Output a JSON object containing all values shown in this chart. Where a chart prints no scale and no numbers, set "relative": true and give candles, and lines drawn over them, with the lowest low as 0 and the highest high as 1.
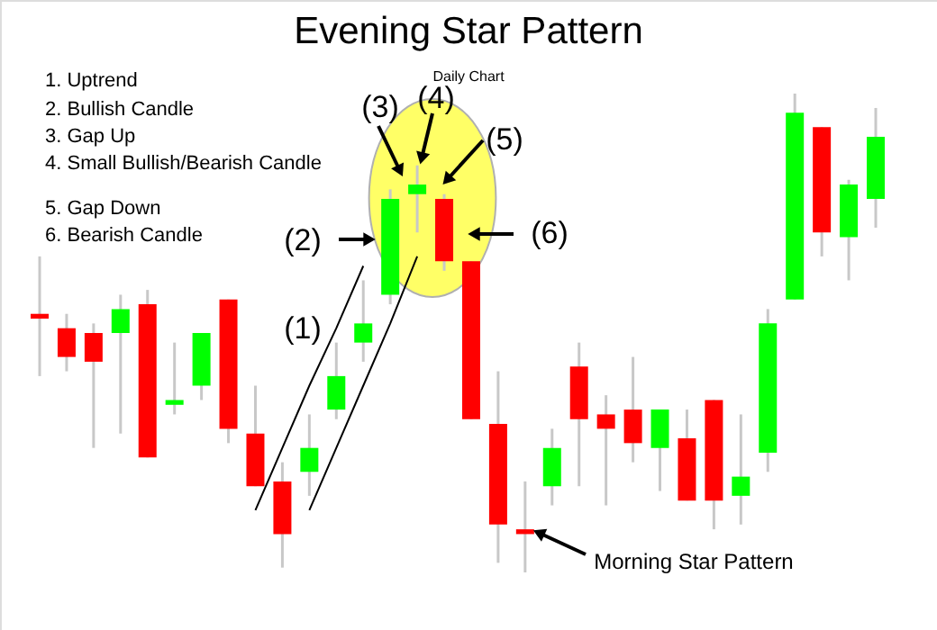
{
  "chart_data": {
    "type": "candlestick",
    "title": "Evening Star Pattern",
    "subtitle": "Daily Chart",
    "relative": true,
    "categories": [
      null,
      null,
      null,
      null,
      null,
      null,
      null,
      null,
      null,
      null,
      null,
      null,
      null,
      null,
      null,
      null,
      null,
      null,
      null,
      null,
      null,
      null,
      null,
      null,
      null,
      null,
      null,
      null,
      null,
      null,
      null,
      null
    ],
    "ohlc": [
      [
        0.54,
        0.66,
        0.41,
        0.53
      ],
      [
        0.51,
        0.54,
        0.42,
        0.45
      ],
      [
        0.5,
        0.52,
        0.26,
        0.44
      ],
      [
        0.5,
        0.58,
        0.29,
        0.55
      ],
      [
        0.56,
        0.59,
        0.24,
        0.24
      ],
      [
        0.35,
        0.48,
        0.33,
        0.36
      ],
      [
        0.39,
        0.5,
        0.36,
        0.5
      ],
      [
        0.57,
        0.57,
        0.27,
        0.3
      ],
      [
        0.29,
        0.39,
        0.18,
        0.18
      ],
      [
        0.19,
        0.23,
        0.01,
        0.08
      ],
      [
        0.21,
        0.33,
        0.16,
        0.26
      ],
      [
        0.34,
        0.48,
        0.32,
        0.41
      ],
      [
        0.48,
        0.61,
        0.44,
        0.52
      ],
      [
        0.58,
        0.8,
        0.56,
        0.78
      ],
      [
        0.79,
        0.85,
        0.71,
        0.81
      ],
      [
        0.78,
        0.79,
        0.63,
        0.65
      ],
      [
        0.65,
        0.65,
        0.32,
        0.32
      ],
      [
        0.31,
        0.42,
        0.02,
        0.1
      ],
      [
        0.09,
        0.19,
        0.0,
        0.08
      ],
      [
        0.18,
        0.3,
        0.14,
        0.26
      ],
      [
        0.43,
        0.48,
        0.18,
        0.32
      ],
      [
        0.33,
        0.37,
        0.14,
        0.3
      ],
      [
        0.34,
        0.45,
        0.23,
        0.27
      ],
      [
        0.26,
        0.34,
        0.17,
        0.34
      ],
      [
        0.28,
        0.34,
        0.15,
        0.15
      ],
      [
        0.36,
        0.36,
        0.09,
        0.15
      ],
      [
        0.16,
        0.33,
        0.1,
        0.2
      ],
      [
        0.25,
        0.55,
        0.21,
        0.52
      ],
      [
        0.57,
        1.0,
        0.57,
        0.96
      ],
      [
        0.93,
        0.93,
        0.66,
        0.71
      ],
      [
        0.7,
        0.82,
        0.61,
        0.81
      ],
      [
        0.78,
        0.97,
        0.72,
        0.91
      ]
    ],
    "colors": [
      "#ff0000",
      "#ff0000",
      "#ff0000",
      "#00ff00",
      "#ff0000",
      "#00ff00",
      "#00ff00",
      "#ff0000",
      "#ff0000",
      "#ff0000",
      "#00ff00",
      "#00ff00",
      "#00ff00",
      "#00ff00",
      "#00ff00",
      "#ff0000",
      "#ff0000",
      "#ff0000",
      "#ff0000",
      "#00ff00",
      "#ff0000",
      "#ff0000",
      "#ff0000",
      "#00ff00",
      "#ff0000",
      "#ff0000",
      "#00ff00",
      "#00ff00",
      "#00ff00",
      "#ff0000",
      "#00ff00",
      "#00ff00"
    ],
    "series": [
      {
        "type": "line",
        "color": "#000000",
        "values": [
          null,
          null,
          null,
          null,
          null,
          null,
          null,
          null,
          0.13,
          0.26,
          0.39,
          0.51,
          0.64,
          null,
          null,
          null,
          null,
          null,
          null,
          null,
          null,
          null,
          null,
          null,
          null,
          null,
          null,
          null,
          null,
          null,
          null,
          null
        ]
      },
      {
        "type": "line",
        "color": "#000000",
        "values": [
          null,
          null,
          null,
          null,
          null,
          null,
          null,
          null,
          null,
          null,
          0.13,
          0.26,
          0.39,
          0.52,
          0.66,
          null,
          null,
          null,
          null,
          null,
          null,
          null,
          null,
          null,
          null,
          null,
          null,
          null,
          null,
          null,
          null,
          null
        ]
      }
    ],
    "annotations": [
      "1. Uptrend",
      "2. Bullish Candle",
      "3. Gap Up",
      "4. Small Bullish/Bearish Candle",
      "5. Gap Down",
      "6. Bearish Candle",
      "(1)",
      "(2)",
      "(3)",
      "(4)",
      "(5)",
      "(6)",
      "Morning Star Pattern"
    ]
  }
}
